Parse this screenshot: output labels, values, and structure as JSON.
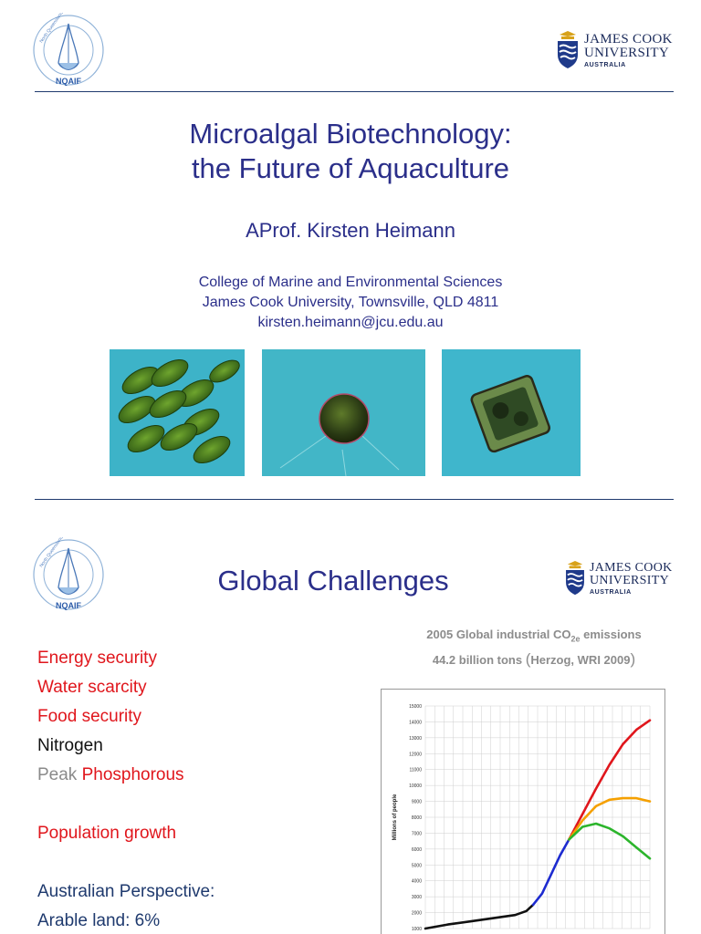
{
  "slide1": {
    "logo_left_text": "NQAIF",
    "logo_left_ring": "North Queensland Algal Identification / Culturing Facility",
    "logo_right": {
      "line1": "JAMES COOK",
      "line2": "UNIVERSITY",
      "line3": "AUSTRALIA"
    },
    "title_line1": "Microalgal Biotechnology:",
    "title_line2": "the Future of Aquaculture",
    "author": "AProf. Kirsten Heimann",
    "affiliation_line1": "College of Marine and Environmental Sciences",
    "affiliation_line2": "James Cook University, Townsville, QLD 4811",
    "affiliation_line3": "kirsten.heimann@jcu.edu.au",
    "photos": [
      "green-elongated-algae-cells",
      "round-algae-cell",
      "square-diatom-cell"
    ]
  },
  "slide2": {
    "title": "Global Challenges",
    "logo_left_text": "NQAIF",
    "logo_left_ring": "North Queensland Algal Identification / Culturing Facility",
    "logo_right": {
      "line1": "JAMES COOK",
      "line2": "UNIVERSITY",
      "line3": "AUSTRALIA"
    },
    "bullets": {
      "energy": "Energy security",
      "water": "Water scarcity",
      "food": "Food security",
      "nitrogen": "Nitrogen",
      "peak_prefix": "Peak",
      "peak_word": "Phosphorous",
      "population": "Population growth",
      "australian": "Australian Perspective:",
      "arable": "Arable land: 6%"
    },
    "co2": {
      "line1_pre": "2005 Global industrial CO",
      "line1_sub": "2e",
      "line1_post": " emissions",
      "line2_pre": "44.2 billion tons ",
      "line2_open": "(",
      "line2_mid": "Herzog, WRI 2009",
      "line2_close": ")"
    }
  },
  "colors": {
    "title": "#2b2f8a",
    "red": "#e0161c",
    "navy": "#1f3a6e",
    "grey": "#8a8a8a"
  },
  "chart_data": {
    "type": "line",
    "ylabel": "Millions of people",
    "yticks": [
      1000,
      2000,
      3000,
      4000,
      5000,
      6000,
      7000,
      8000,
      9000,
      10000,
      11000,
      12000,
      13000,
      14000,
      15000
    ],
    "ylim": [
      1000,
      15000
    ],
    "grid": true,
    "series": [
      {
        "color": "#111111",
        "values": [
          [
            0,
            1000
          ],
          [
            0.1,
            1250
          ],
          [
            0.2,
            1450
          ],
          [
            0.3,
            1650
          ],
          [
            0.4,
            1850
          ],
          [
            0.45,
            2100
          ],
          [
            0.48,
            2500
          ]
        ]
      },
      {
        "color": "#1d2bd0",
        "values": [
          [
            0.48,
            2500
          ],
          [
            0.52,
            3200
          ],
          [
            0.56,
            4400
          ],
          [
            0.6,
            5600
          ],
          [
            0.64,
            6600
          ]
        ]
      },
      {
        "color": "#e0161c",
        "values": [
          [
            0.64,
            6600
          ],
          [
            0.7,
            8200
          ],
          [
            0.76,
            9800
          ],
          [
            0.82,
            11300
          ],
          [
            0.88,
            12600
          ],
          [
            0.94,
            13500
          ],
          [
            1.0,
            14100
          ]
        ]
      },
      {
        "color": "#f5a000",
        "values": [
          [
            0.64,
            6600
          ],
          [
            0.7,
            7800
          ],
          [
            0.76,
            8700
          ],
          [
            0.82,
            9100
          ],
          [
            0.88,
            9200
          ],
          [
            0.94,
            9200
          ],
          [
            1.0,
            9000
          ]
        ]
      },
      {
        "color": "#2cb52c",
        "values": [
          [
            0.64,
            6600
          ],
          [
            0.7,
            7400
          ],
          [
            0.76,
            7600
          ],
          [
            0.82,
            7300
          ],
          [
            0.88,
            6800
          ],
          [
            0.94,
            6100
          ],
          [
            1.0,
            5400
          ]
        ]
      }
    ]
  }
}
